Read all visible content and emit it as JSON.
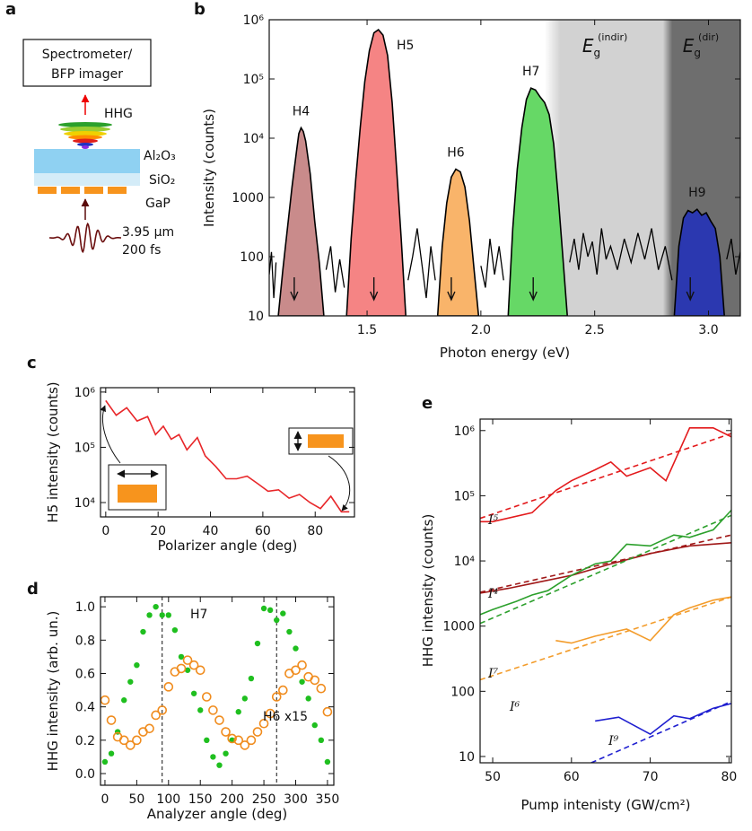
{
  "panel_a": {
    "panel_label": "a",
    "box_lines": [
      "Spectrometer/",
      "BFP imager"
    ],
    "hhg": "HHG",
    "layers": [
      "Al₂O₃",
      "SiO₂",
      "GaP"
    ],
    "pump": [
      "3.95 μm",
      "200 fs"
    ]
  },
  "chart_data": [
    {
      "panel_label": "b",
      "type": "area",
      "ylabel": "Intensity (counts)",
      "xlabel": "Photon energy (eV)",
      "log_y": true,
      "xlim": [
        1.07,
        3.14
      ],
      "ylim": [
        10,
        1000000
      ],
      "xticks": [
        1.5,
        {
          "value": 2,
          "label": "2.0"
        },
        2.5,
        {
          "value": 3,
          "label": "3.0"
        }
      ],
      "yticks": [
        10,
        100,
        1000,
        {
          "value": 10000,
          "label": "10⁴"
        },
        {
          "value": 100000,
          "label": "10⁵"
        },
        {
          "value": 1000000,
          "label": "10⁶"
        }
      ],
      "bands": [
        {
          "label": "E",
          "subscript": "g",
          "superscript": "(indir)",
          "x0": 2.28,
          "x1": 2.86,
          "color": "#d2d2d2"
        },
        {
          "label": "E",
          "subscript": "g",
          "superscript": "(dir)",
          "x0": 2.8,
          "x1": 3.14,
          "color": "#6e6e6e"
        }
      ],
      "series": [
        {
          "color": "#000000",
          "x": [
            1.07,
            1.08,
            1.09,
            1.1,
            1.2,
            1.32,
            1.34,
            1.36,
            1.38,
            1.4,
            1.55,
            1.68,
            1.7,
            1.72,
            1.74,
            1.76,
            1.78,
            1.8,
            1.9,
            2.0,
            2.02,
            2.04,
            2.06,
            2.08,
            2.1,
            2.25,
            2.39,
            2.41,
            2.43,
            2.45,
            2.47,
            2.49,
            2.51,
            2.53,
            2.55,
            2.57,
            2.6,
            2.63,
            2.66,
            2.69,
            2.72,
            2.75,
            2.78,
            2.81,
            2.84,
            2.95,
            3.08,
            3.1,
            3.12,
            3.14
          ],
          "values": [
            50,
            120,
            20,
            80,
            null,
            60,
            150,
            25,
            90,
            30,
            null,
            40,
            100,
            300,
            80,
            20,
            150,
            40,
            null,
            70,
            30,
            200,
            50,
            150,
            40,
            null,
            80,
            200,
            60,
            250,
            100,
            180,
            50,
            300,
            90,
            150,
            60,
            200,
            80,
            250,
            90,
            300,
            60,
            150,
            40,
            null,
            90,
            200,
            50,
            120
          ]
        },
        {
          "name": "H4",
          "color": "#c98b8b",
          "fill": true,
          "arrow_x": 1.18,
          "x": [
            1.11,
            1.13,
            1.15,
            1.17,
            1.19,
            1.2,
            1.21,
            1.22,
            1.23,
            1.25,
            1.27,
            1.29,
            1.31
          ],
          "values": [
            10,
            60,
            300,
            1500,
            6000,
            12000,
            15000,
            13000,
            9000,
            2500,
            400,
            80,
            10
          ]
        },
        {
          "name": "H5",
          "color": "#f58484",
          "fill": true,
          "arrow_x": 1.53,
          "x": [
            1.41,
            1.43,
            1.45,
            1.47,
            1.49,
            1.51,
            1.53,
            1.55,
            1.57,
            1.59,
            1.61,
            1.63,
            1.65,
            1.67
          ],
          "values": [
            10,
            200,
            2000,
            15000,
            90000,
            300000,
            600000,
            680000,
            550000,
            250000,
            40000,
            3000,
            200,
            10
          ]
        },
        {
          "name": "H6",
          "color": "#f9b46a",
          "fill": true,
          "arrow_x": 1.87,
          "x": [
            1.81,
            1.83,
            1.85,
            1.87,
            1.89,
            1.91,
            1.93,
            1.95,
            1.97,
            1.99
          ],
          "values": [
            10,
            150,
            800,
            2200,
            3000,
            2700,
            1500,
            400,
            60,
            10
          ]
        },
        {
          "name": "H7",
          "color": "#66d866",
          "fill": true,
          "arrow_x": 2.23,
          "x": [
            2.12,
            2.14,
            2.16,
            2.18,
            2.2,
            2.22,
            2.24,
            2.26,
            2.28,
            2.3,
            2.32,
            2.34,
            2.36,
            2.38
          ],
          "values": [
            10,
            300,
            3000,
            15000,
            45000,
            70000,
            65000,
            50000,
            40000,
            25000,
            8000,
            1000,
            100,
            10
          ]
        },
        {
          "name": "H9",
          "color": "#2b38b0",
          "fill": true,
          "arrow_x": 2.92,
          "x": [
            2.85,
            2.87,
            2.89,
            2.91,
            2.93,
            2.95,
            2.97,
            2.99,
            3.01,
            3.03,
            3.05,
            3.07
          ],
          "values": [
            10,
            150,
            450,
            600,
            550,
            630,
            500,
            550,
            400,
            300,
            100,
            10
          ]
        }
      ]
    },
    {
      "panel_label": "c",
      "type": "line",
      "ylabel": "H5 intensity (counts)",
      "xlabel": "Polarizer angle (deg)",
      "log_y": true,
      "xlim": [
        -2,
        95
      ],
      "ylim": [
        5500,
        1200000
      ],
      "xticks": [
        0,
        20,
        40,
        60,
        80
      ],
      "yticks": [
        {
          "value": 10000,
          "label": "10⁴"
        },
        {
          "value": 100000,
          "label": "10⁵"
        },
        {
          "value": 1000000,
          "label": "10⁶"
        }
      ],
      "series": [
        {
          "color": "#e8272a",
          "x": [
            0,
            4,
            8,
            12,
            16,
            19,
            22,
            25,
            28,
            31,
            35,
            38,
            42,
            46,
            50,
            54,
            58,
            62,
            66,
            70,
            74,
            78,
            82,
            86,
            90,
            93
          ],
          "values": [
            700000,
            380000,
            520000,
            300000,
            360000,
            170000,
            240000,
            140000,
            170000,
            90000,
            150000,
            70000,
            45000,
            27000,
            27000,
            30000,
            22000,
            16000,
            17000,
            12000,
            14000,
            10000,
            7800,
            13000,
            6800,
            6800
          ]
        }
      ]
    },
    {
      "panel_label": "d",
      "type": "scatter",
      "ylabel": "HHG intensity (arb. un.)",
      "xlabel": "Analyzer angle (deg)",
      "xlim": [
        -7,
        360
      ],
      "ylim": [
        -0.07,
        1.06
      ],
      "xticks": [
        0,
        50,
        100,
        150,
        200,
        250,
        300,
        350
      ],
      "yticks": [
        {
          "value": 0,
          "label": "0.0"
        },
        0.2,
        0.4,
        0.6,
        0.8,
        {
          "value": 1,
          "label": "1.0"
        }
      ],
      "vlines": [
        90,
        270
      ],
      "series": [
        {
          "name": "H7",
          "color": "#1fbf1f",
          "marker": "filled",
          "x": [
            0,
            10,
            20,
            30,
            40,
            50,
            60,
            70,
            80,
            90,
            100,
            110,
            120,
            130,
            140,
            150,
            160,
            170,
            180,
            190,
            200,
            210,
            220,
            230,
            240,
            250,
            260,
            270,
            280,
            290,
            300,
            310,
            320,
            330,
            340,
            350
          ],
          "values": [
            0.07,
            0.12,
            0.25,
            0.44,
            0.55,
            0.65,
            0.85,
            0.95,
            1.0,
            0.95,
            0.95,
            0.86,
            0.7,
            0.62,
            0.48,
            0.38,
            0.2,
            0.1,
            0.05,
            0.12,
            0.2,
            0.37,
            0.45,
            0.57,
            0.78,
            0.99,
            0.98,
            0.92,
            0.96,
            0.85,
            0.75,
            0.55,
            0.45,
            0.29,
            0.2,
            0.07
          ]
        },
        {
          "name": "H6 x15",
          "color": "#f08c1e",
          "marker": "open",
          "x": [
            0,
            10,
            20,
            30,
            40,
            50,
            60,
            70,
            80,
            90,
            100,
            110,
            120,
            130,
            140,
            150,
            160,
            170,
            180,
            190,
            200,
            210,
            220,
            230,
            240,
            250,
            260,
            270,
            280,
            290,
            300,
            310,
            320,
            330,
            340,
            350
          ],
          "values": [
            0.44,
            0.32,
            0.22,
            0.2,
            0.17,
            0.2,
            0.25,
            0.27,
            0.35,
            0.38,
            0.52,
            0.61,
            0.63,
            0.68,
            0.65,
            0.62,
            0.46,
            0.38,
            0.32,
            0.25,
            0.21,
            0.2,
            0.17,
            0.2,
            0.25,
            0.3,
            0.36,
            0.46,
            0.5,
            0.6,
            0.62,
            0.65,
            0.58,
            0.56,
            0.51,
            0.37
          ]
        }
      ]
    },
    {
      "panel_label": "e",
      "type": "line",
      "ylabel": "HHG intensity (counts)",
      "xlabel": "Pump intenisty (GW/cm²)",
      "log_y": true,
      "xlim": [
        48.4,
        80.3
      ],
      "ylim": [
        8,
        1500000
      ],
      "xticks": [
        50,
        60,
        70,
        80
      ],
      "yticks": [
        10,
        100,
        1000,
        {
          "value": 10000,
          "label": "10⁴"
        },
        {
          "value": 100000,
          "label": "10⁵"
        },
        {
          "value": 1000000,
          "label": "10⁶"
        }
      ],
      "series": [
        {
          "name": "I⁵",
          "color": "#e31a1c",
          "x": [
            48.4,
            50,
            55,
            58,
            60,
            63,
            65,
            67,
            70,
            72,
            75,
            78,
            80.3
          ],
          "values": [
            40000,
            40000,
            55000,
            120000,
            170000,
            250000,
            330000,
            200000,
            270000,
            170000,
            1100000,
            1100000,
            800000
          ]
        },
        {
          "color": "#e31a1c",
          "dashed": true,
          "x": [
            48.4,
            80.3
          ],
          "values": [
            45000,
            900000
          ]
        },
        {
          "name": "I⁴",
          "color": "#a01818",
          "x": [
            48.4,
            52,
            55,
            60,
            65,
            70,
            75,
            80.3
          ],
          "values": [
            3200,
            3800,
            4500,
            6000,
            9000,
            13000,
            17000,
            19000
          ]
        },
        {
          "color": "#a01818",
          "dashed": true,
          "x": [
            48.4,
            80.3
          ],
          "values": [
            3300,
            25000
          ]
        },
        {
          "name": "I⁷",
          "color": "#2ca02c",
          "x": [
            48.4,
            50,
            53,
            55,
            57,
            60,
            63,
            65,
            67,
            70,
            73,
            75,
            78,
            80.3
          ],
          "values": [
            1500,
            1800,
            2400,
            3000,
            3500,
            6000,
            9000,
            10000,
            18000,
            17000,
            25000,
            23000,
            30000,
            60000
          ]
        },
        {
          "color": "#2ca02c",
          "dashed": true,
          "x": [
            48.4,
            80.3
          ],
          "values": [
            1100,
            50000
          ]
        },
        {
          "name": "I⁶",
          "color": "#f39c2b",
          "x": [
            58,
            60,
            63,
            67,
            70,
            73,
            75,
            78,
            80.3
          ],
          "values": [
            600,
            550,
            700,
            900,
            600,
            1500,
            1900,
            2500,
            2800
          ]
        },
        {
          "color": "#f39c2b",
          "dashed": true,
          "x": [
            48.4,
            80.3
          ],
          "values": [
            150,
            2800
          ]
        },
        {
          "name": "I⁹",
          "color": "#1f1fd0",
          "x": [
            63,
            66,
            70,
            73,
            75,
            78,
            80.3
          ],
          "values": [
            35,
            40,
            22,
            42,
            38,
            55,
            65
          ]
        },
        {
          "color": "#1f1fd0",
          "dashed": true,
          "x": [
            62.5,
            80.3
          ],
          "values": [
            8,
            70
          ]
        }
      ]
    }
  ]
}
